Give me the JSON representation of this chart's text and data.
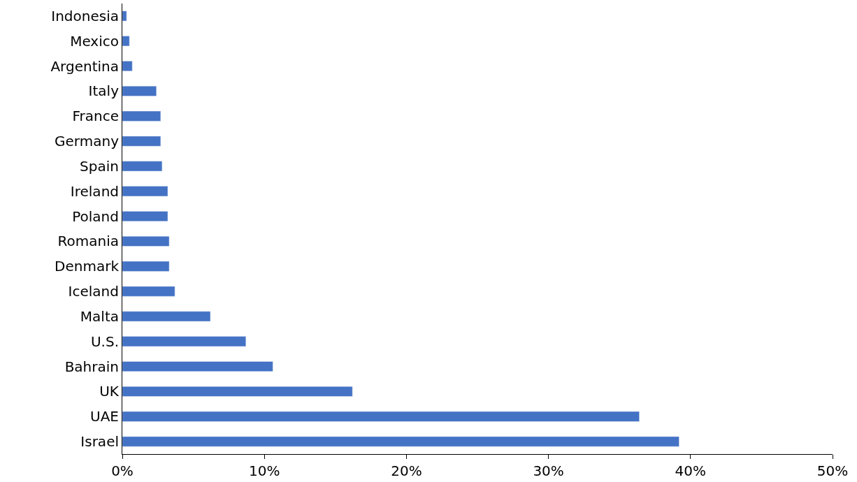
{
  "chart_data": {
    "type": "bar",
    "orientation": "horizontal",
    "categories": [
      "Indonesia",
      "Mexico",
      "Argentina",
      "Italy",
      "France",
      "Germany",
      "Spain",
      "Ireland",
      "Poland",
      "Romania",
      "Denmark",
      "Iceland",
      "Malta",
      "U.S.",
      "Bahrain",
      "UK",
      "UAE",
      "Israel"
    ],
    "values": [
      0.3,
      0.5,
      0.7,
      2.4,
      2.7,
      2.7,
      2.8,
      3.2,
      3.2,
      3.3,
      3.3,
      3.7,
      6.2,
      8.7,
      10.6,
      16.2,
      36.4,
      39.2
    ],
    "color": "#4472c4",
    "xlim": [
      0,
      50
    ],
    "xticks": [
      {
        "value": 0,
        "label": "0%"
      },
      {
        "value": 10,
        "label": "10%"
      },
      {
        "value": 20,
        "label": "20%"
      },
      {
        "value": 30,
        "label": "30%"
      },
      {
        "value": 40,
        "label": "40%"
      },
      {
        "value": 50,
        "label": "50%"
      }
    ],
    "tick_labels": "xy"
  }
}
